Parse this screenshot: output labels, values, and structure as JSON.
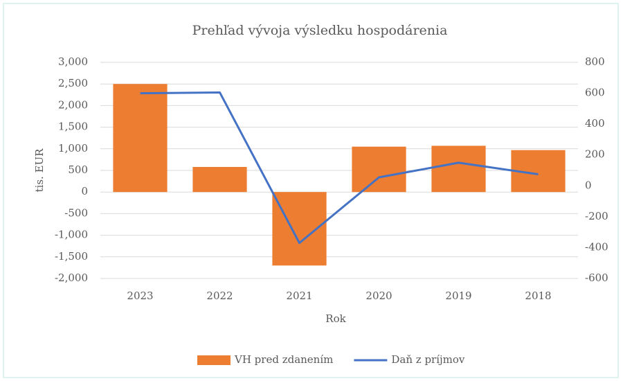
{
  "chart_data": {
    "type": "combo",
    "title": "Prehľad vývoja výsledku hospodárenia",
    "x_label": "Rok",
    "y_label": "tis. EUR",
    "categories": [
      "2023",
      "2022",
      "2021",
      "2020",
      "2019",
      "2018"
    ],
    "series": [
      {
        "name": "VH pred zdanením",
        "type": "bar",
        "color": "#ed7d31",
        "values": [
          2500,
          580,
          -1700,
          1050,
          1070,
          970
        ]
      },
      {
        "name": "Daň z príjmov",
        "type": "line",
        "axis": "y2",
        "color": "#4472c4",
        "values": [
          600,
          605,
          -370,
          55,
          150,
          75
        ]
      }
    ],
    "ylim": [
      -2000,
      3000
    ],
    "yticks": [
      {
        "value": -2000,
        "label": "-2,000"
      },
      {
        "value": -1500,
        "label": "-1,500"
      },
      {
        "value": -1000,
        "label": "-1,000"
      },
      -500,
      0,
      500,
      {
        "value": 1000,
        "label": "1,000"
      },
      {
        "value": 1500,
        "label": "1,500"
      },
      {
        "value": 2000,
        "label": "2,000"
      },
      {
        "value": 2500,
        "label": "2,500"
      },
      {
        "value": 3000,
        "label": "3,000"
      }
    ],
    "y2lim": [
      -600,
      800
    ],
    "y2ticks": [
      -600,
      -400,
      -200,
      0,
      200,
      400,
      600,
      800
    ],
    "grid": true,
    "legend": "bottom"
  }
}
